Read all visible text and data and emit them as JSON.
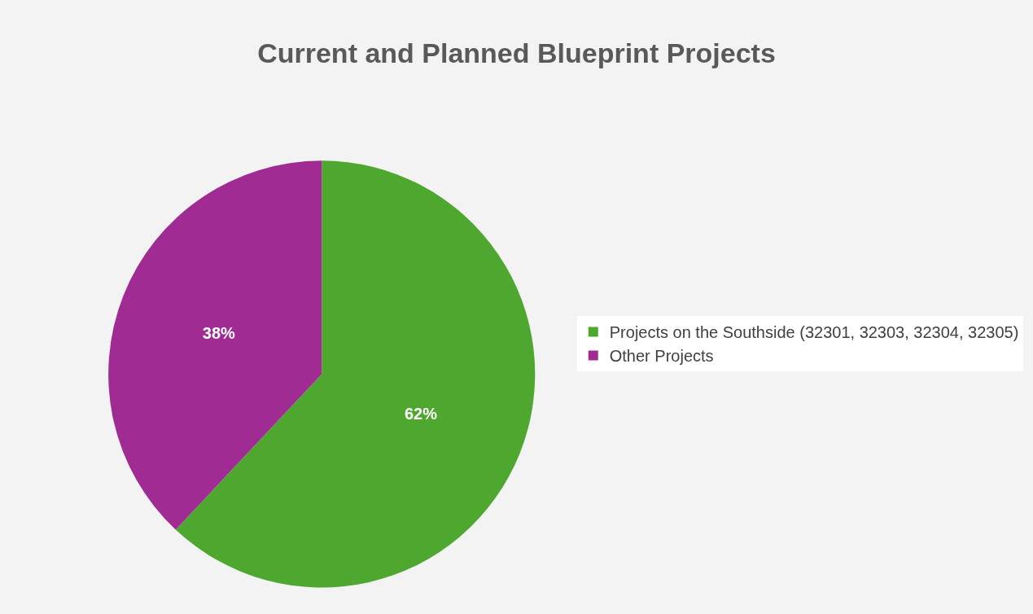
{
  "chart_data": {
    "type": "pie",
    "title": "Current and Planned Blueprint Projects",
    "categories": [
      "Projects on the Southside (32301, 32303, 32304, 32305)",
      "Other Projects"
    ],
    "values": [
      62,
      38
    ],
    "colors": [
      "#4ea72e",
      "#a02b93"
    ],
    "value_labels": [
      "62%",
      "38%"
    ],
    "legend": "right"
  }
}
